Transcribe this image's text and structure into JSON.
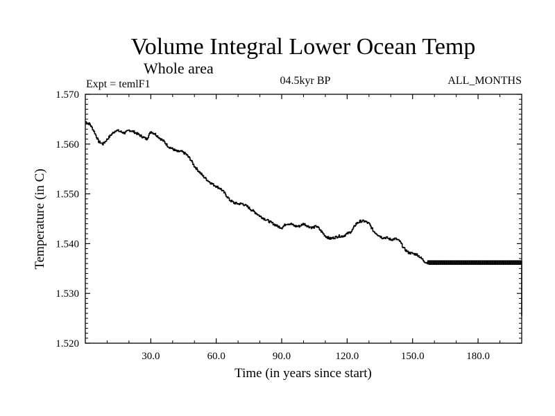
{
  "chart_data": {
    "type": "line",
    "title": "Volume Integral Lower Ocean Temp",
    "subtitle": "Whole area",
    "experiment": "Expt = temlF1",
    "period": "04.5kyr BP",
    "months": "ALL_MONTHS",
    "xlabel": "Time (in years since start)",
    "ylabel": "Temperature (in C)",
    "xlim": [
      0,
      200
    ],
    "ylim": [
      1.52,
      1.57
    ],
    "xticks": [
      30,
      60,
      90,
      120,
      150,
      180
    ],
    "xtick_labels": [
      "30.0",
      "60.0",
      "90.0",
      "120.0",
      "150.0",
      "180.0"
    ],
    "yticks": [
      1.52,
      1.53,
      1.54,
      1.55,
      1.56,
      1.57
    ],
    "ytick_labels": [
      "1.520",
      "1.530",
      "1.540",
      "1.550",
      "1.560",
      "1.570"
    ],
    "grid": false,
    "series": [
      {
        "name": "Volume Integral Lower Ocean Temp",
        "x": [
          0,
          2,
          4,
          6,
          8,
          10,
          12,
          14,
          16,
          18,
          20,
          22,
          24,
          26,
          28,
          30,
          32,
          34,
          36,
          38,
          40,
          42,
          44,
          46,
          48,
          50,
          52,
          54,
          56,
          58,
          60,
          62,
          64,
          66,
          68,
          70,
          72,
          74,
          76,
          78,
          80,
          82,
          84,
          86,
          88,
          90,
          92,
          94,
          96,
          98,
          100,
          102,
          104,
          106,
          108,
          110,
          112,
          114,
          116,
          118,
          120,
          122,
          124,
          126,
          128,
          130,
          132,
          134,
          136,
          138,
          140,
          142,
          144,
          146,
          148,
          150,
          152,
          154,
          156,
          158,
          160,
          165,
          170,
          175,
          180,
          185,
          190,
          195,
          200
        ],
        "values": [
          1.5645,
          1.564,
          1.5625,
          1.5605,
          1.56,
          1.561,
          1.562,
          1.5628,
          1.5625,
          1.5622,
          1.5628,
          1.5625,
          1.562,
          1.5615,
          1.561,
          1.5625,
          1.562,
          1.5612,
          1.5605,
          1.5595,
          1.559,
          1.5585,
          1.5585,
          1.558,
          1.557,
          1.5555,
          1.5545,
          1.5535,
          1.5527,
          1.552,
          1.5515,
          1.551,
          1.55,
          1.5488,
          1.5482,
          1.548,
          1.548,
          1.5475,
          1.5468,
          1.5462,
          1.5455,
          1.545,
          1.5445,
          1.544,
          1.5435,
          1.5432,
          1.544,
          1.544,
          1.5435,
          1.5435,
          1.544,
          1.5435,
          1.5432,
          1.5435,
          1.5425,
          1.5415,
          1.541,
          1.5412,
          1.5415,
          1.5415,
          1.542,
          1.5425,
          1.544,
          1.5445,
          1.5445,
          1.544,
          1.5425,
          1.5418,
          1.5412,
          1.5412,
          1.5408,
          1.541,
          1.5405,
          1.539,
          1.5382,
          1.538,
          1.5378,
          1.537,
          1.5362,
          1.5362,
          1.5362,
          1.5362,
          1.5362,
          1.5362,
          1.5362,
          1.5362,
          1.5362,
          1.5362,
          1.5362
        ]
      }
    ]
  }
}
